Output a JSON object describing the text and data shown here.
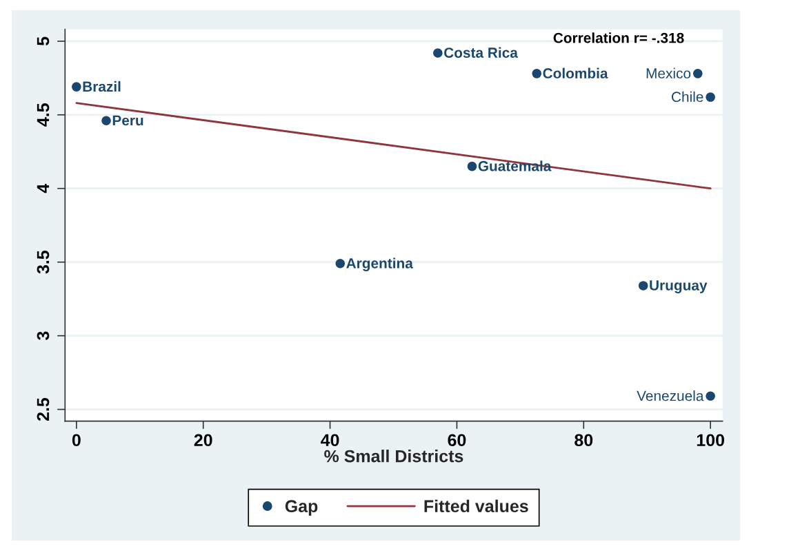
{
  "chart_data": {
    "type": "scatter",
    "xlabel": "% Small Districts",
    "xlim": [
      -1.8,
      101.9
    ],
    "ylim": [
      2.42,
      5.08
    ],
    "xticks": [
      0,
      20,
      40,
      60,
      80,
      100
    ],
    "yticks": [
      2.5,
      3,
      3.5,
      4,
      4.5,
      5
    ],
    "grid": "y",
    "legend": "bottom",
    "series": [
      {
        "name": "Gap",
        "marker": "circle",
        "color": "#1a476f",
        "x": [
          0,
          4.7,
          41.6,
          57.0,
          62.4,
          72.6,
          89.4,
          98.0,
          100,
          100
        ],
        "values": [
          4.69,
          4.46,
          3.49,
          4.92,
          4.15,
          4.78,
          3.34,
          4.78,
          4.62,
          2.59
        ]
      },
      {
        "name": "Fitted values",
        "type": "line",
        "color": "#90353b",
        "line_style": "solid",
        "x": [
          0,
          100
        ],
        "values": [
          4.58,
          4.0
        ]
      }
    ],
    "annotations": [
      {
        "text": "Brazil",
        "x": 0,
        "y": 4.69
      },
      {
        "text": "Peru",
        "x": 4.7,
        "y": 4.46
      },
      {
        "text": "Argentina",
        "x": 41.6,
        "y": 3.49
      },
      {
        "text": "Costa Rica",
        "x": 57.0,
        "y": 4.92
      },
      {
        "text": "Guatemala",
        "x": 62.4,
        "y": 4.15
      },
      {
        "text": "Colombia",
        "x": 72.6,
        "y": 4.78
      },
      {
        "text": "Uruguay",
        "x": 89.4,
        "y": 3.34
      },
      {
        "text": "Mexico",
        "x": 98.0,
        "y": 4.78
      },
      {
        "text": "Chile",
        "x": 100,
        "y": 4.62
      },
      {
        "text": "Venezuela",
        "x": 100,
        "y": 2.59
      },
      "Correlation r= -.318"
    ]
  }
}
